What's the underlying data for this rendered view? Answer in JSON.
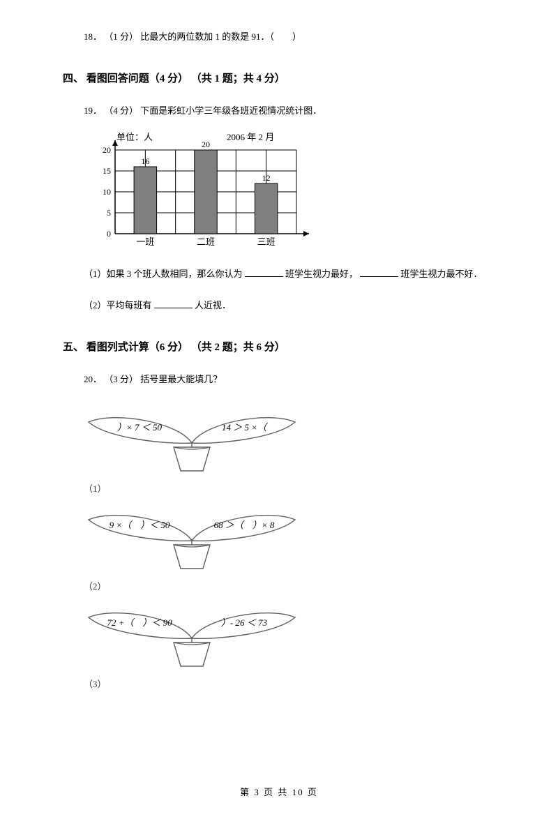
{
  "q18": {
    "number": "18．",
    "points": "（1 分）",
    "text": "比最大的两位数加 1 的数是 91．（　　）"
  },
  "section4": {
    "heading": "四、 看图回答问题（4 分） （共 1 题；共 4 分）",
    "q19": {
      "number": "19．",
      "points": "（4 分）",
      "text": "下面是彩虹小学三年级各班近视情况统计图．",
      "sub1_a": "（1）如果 3 个班人数相同，那么你认为",
      "sub1_b": "班学生视力最好，",
      "sub1_c": "班学生视力最不好．",
      "sub2_a": "（2）平均每班有",
      "sub2_b": "人近视．"
    }
  },
  "chart": {
    "type": "bar",
    "unit_label": "单位：人",
    "date_label": "2006 年 2 月",
    "categories": [
      "一班",
      "二班",
      "三班"
    ],
    "values": [
      16,
      20,
      12
    ],
    "ymax": 20,
    "ytick_step": 5,
    "background_color": "#ffffff",
    "grid_color": "#000000",
    "bar_color": "#808080",
    "axis_color": "#000000",
    "label_fontsize": 13
  },
  "section5": {
    "heading": "五、 看图列式计算（6 分） （共 2 题；共 6 分）",
    "q20": {
      "number": "20．",
      "points": "（3 分）",
      "text": "括号里最大能填几？",
      "plant1": {
        "left": "）× 7 ＜ 50",
        "right": "14 ＞ 5 ×（",
        "label": "（1）"
      },
      "plant2": {
        "left": "9 ×（　）＜ 50",
        "right": "68 ＞（　）× 8",
        "label": "（2）"
      },
      "plant3": {
        "left": "72 +（　）＜ 90",
        "right": "）- 26 ＜ 73",
        "label": "（3）"
      }
    }
  },
  "footer": {
    "text": "第 3 页 共 10 页"
  },
  "style": {
    "plant_stroke": "#606060",
    "plant_fill": "#ffffff",
    "text_color": "#000000"
  }
}
